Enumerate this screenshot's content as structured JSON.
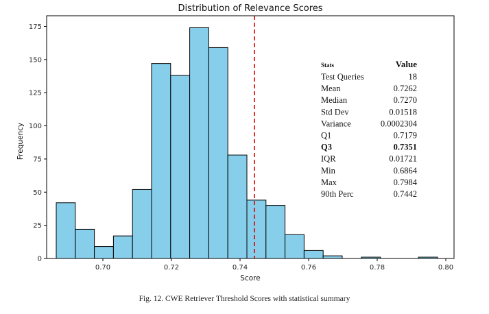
{
  "chart_data": {
    "type": "bar",
    "title": "Distribution of Relevance Scores",
    "xlabel": "Score",
    "ylabel": "Frequency",
    "xlim": [
      0.6836,
      0.8024
    ],
    "ylim": [
      0,
      183
    ],
    "xticks": [
      0.7,
      0.72,
      0.74,
      0.76,
      0.78,
      0.8
    ],
    "xtick_labels": [
      "0.70",
      "0.72",
      "0.74",
      "0.76",
      "0.78",
      "0.80"
    ],
    "yticks": [
      0,
      25,
      50,
      75,
      100,
      125,
      150,
      175
    ],
    "ytick_labels": [
      "0",
      "25",
      "50",
      "75",
      "100",
      "125",
      "150",
      "175"
    ],
    "bin_start": 0.6864,
    "bin_width": 0.00556,
    "values": [
      42,
      22,
      9,
      17,
      52,
      147,
      138,
      174,
      159,
      78,
      44,
      40,
      18,
      6,
      2,
      0,
      1,
      0,
      0,
      1
    ],
    "bar_color": "#87ceeb",
    "edge_color": "#000000",
    "reference_line": {
      "x": 0.7442,
      "color": "#dd0000",
      "style": "dashed"
    },
    "grid": false
  },
  "stats_table": {
    "header_label": "Stats",
    "header_value": "Value",
    "rows": [
      {
        "label": "Test Queries",
        "value": "18",
        "bold": false
      },
      {
        "label": "Mean",
        "value": "0.7262",
        "bold": false
      },
      {
        "label": "Median",
        "value": "0.7270",
        "bold": false
      },
      {
        "label": "Std Dev",
        "value": "0.01518",
        "bold": false
      },
      {
        "label": "Variance",
        "value": "0.0002304",
        "bold": false
      },
      {
        "label": "Q1",
        "value": "0.7179",
        "bold": false
      },
      {
        "label": "Q3",
        "value": "0.7351",
        "bold": true
      },
      {
        "label": "IQR",
        "value": "0.01721",
        "bold": false
      },
      {
        "label": "Min",
        "value": "0.6864",
        "bold": false
      },
      {
        "label": "Max",
        "value": "0.7984",
        "bold": false
      },
      {
        "label": "90th Perc",
        "value": "0.7442",
        "bold": false
      }
    ]
  },
  "caption": "Fig. 12.  CWE Retriever Threshold Scores with statistical summary"
}
